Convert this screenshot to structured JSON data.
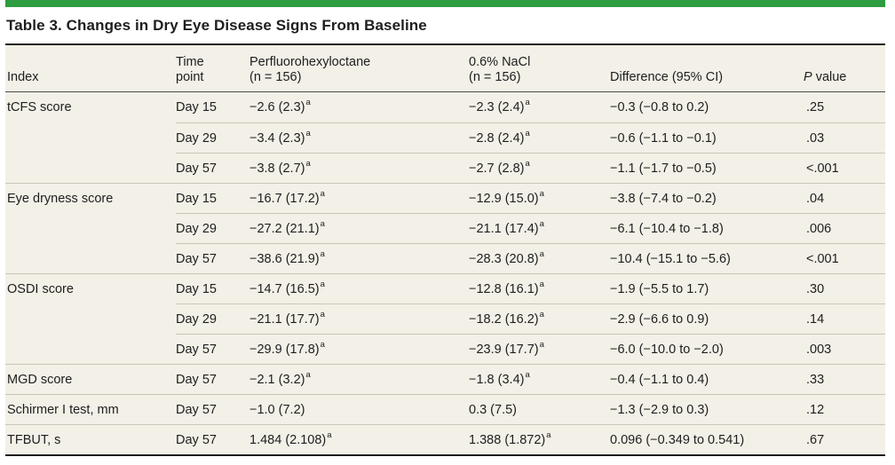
{
  "title": "Table 3. Changes in Dry Eye Disease Signs From Baseline",
  "footnote_marker": "a",
  "colors": {
    "accent_green": "#2E9C40",
    "table_bg": "#F2F0E7",
    "border_dark": "#1C1C1C",
    "header_rule": "#4C4C44",
    "row_rule": "#C9C6B8",
    "text": "#1E1E1E"
  },
  "columns": [
    {
      "label": "Index"
    },
    {
      "label": "Time point",
      "line1": "Time",
      "line2": "point"
    },
    {
      "label": "Perfluorohexyloctane (n = 156)",
      "line1": "Perfluorohexyloctane",
      "line2": "(n = 156)"
    },
    {
      "label": "0.6% NaCl (n = 156)",
      "line1": "0.6% NaCl",
      "line2": "(n = 156)"
    },
    {
      "label": "Difference (95% CI)"
    },
    {
      "label": "P value",
      "p_italic": "P",
      "p_rest": " value"
    }
  ],
  "groups": [
    {
      "index": "tCFS score",
      "rows": [
        {
          "time": "Day 15",
          "pfho": "−2.6 (2.3)",
          "pfho_sup": "a",
          "nacl": "−2.3 (2.4)",
          "nacl_sup": "a",
          "diff": "−0.3 (−0.8 to 0.2)",
          "p": ".25"
        },
        {
          "time": "Day 29",
          "pfho": "−3.4 (2.3)",
          "pfho_sup": "a",
          "nacl": "−2.8 (2.4)",
          "nacl_sup": "a",
          "diff": "−0.6 (−1.1 to −0.1)",
          "p": ".03"
        },
        {
          "time": "Day 57",
          "pfho": "−3.8 (2.7)",
          "pfho_sup": "a",
          "nacl": "−2.7 (2.8)",
          "nacl_sup": "a",
          "diff": "−1.1 (−1.7 to −0.5)",
          "p": "<.001"
        }
      ]
    },
    {
      "index": "Eye dryness score",
      "rows": [
        {
          "time": "Day 15",
          "pfho": "−16.7 (17.2)",
          "pfho_sup": "a",
          "nacl": "−12.9 (15.0)",
          "nacl_sup": "a",
          "diff": "−3.8 (−7.4 to −0.2)",
          "p": ".04"
        },
        {
          "time": "Day 29",
          "pfho": "−27.2 (21.1)",
          "pfho_sup": "a",
          "nacl": "−21.1 (17.4)",
          "nacl_sup": "a",
          "diff": "−6.1 (−10.4 to −1.8)",
          "p": ".006"
        },
        {
          "time": "Day 57",
          "pfho": "−38.6 (21.9)",
          "pfho_sup": "a",
          "nacl": "−28.3 (20.8)",
          "nacl_sup": "a",
          "diff": "−10.4 (−15.1 to −5.6)",
          "p": "<.001"
        }
      ]
    },
    {
      "index": "OSDI score",
      "rows": [
        {
          "time": "Day 15",
          "pfho": "−14.7 (16.5)",
          "pfho_sup": "a",
          "nacl": "−12.8 (16.1)",
          "nacl_sup": "a",
          "diff": "−1.9 (−5.5 to 1.7)",
          "p": ".30"
        },
        {
          "time": "Day 29",
          "pfho": "−21.1 (17.7)",
          "pfho_sup": "a",
          "nacl": "−18.2 (16.2)",
          "nacl_sup": "a",
          "diff": "−2.9 (−6.6 to 0.9)",
          "p": ".14"
        },
        {
          "time": "Day 57",
          "pfho": "−29.9 (17.8)",
          "pfho_sup": "a",
          "nacl": "−23.9 (17.7)",
          "nacl_sup": "a",
          "diff": "−6.0 (−10.0 to −2.0)",
          "p": ".003"
        }
      ]
    },
    {
      "index": "MGD score",
      "rows": [
        {
          "time": "Day 57",
          "pfho": "−2.1 (3.2)",
          "pfho_sup": "a",
          "nacl": "−1.8 (3.4)",
          "nacl_sup": "a",
          "diff": "−0.4 (−1.1 to 0.4)",
          "p": ".33"
        }
      ]
    },
    {
      "index": "Schirmer I test, mm",
      "rows": [
        {
          "time": "Day 57",
          "pfho": "−1.0 (7.2)",
          "pfho_sup": "",
          "nacl": "0.3 (7.5)",
          "nacl_sup": "",
          "diff": "−1.3 (−2.9 to 0.3)",
          "p": ".12"
        }
      ]
    },
    {
      "index": "TFBUT, s",
      "rows": [
        {
          "time": "Day 57",
          "pfho": "1.484 (2.108)",
          "pfho_sup": "a",
          "nacl": "1.388 (1.872)",
          "nacl_sup": "a",
          "diff": "0.096 (−0.349 to 0.541)",
          "p": ".67"
        }
      ]
    }
  ]
}
